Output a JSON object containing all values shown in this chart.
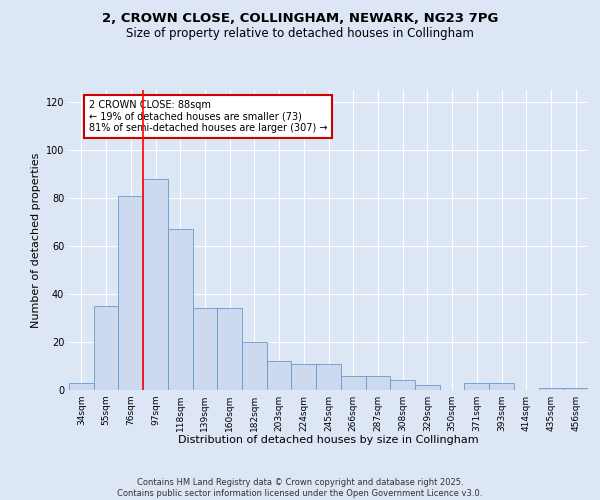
{
  "title_line1": "2, CROWN CLOSE, COLLINGHAM, NEWARK, NG23 7PG",
  "title_line2": "Size of property relative to detached houses in Collingham",
  "xlabel": "Distribution of detached houses by size in Collingham",
  "ylabel": "Number of detached properties",
  "categories": [
    "34sqm",
    "55sqm",
    "76sqm",
    "97sqm",
    "118sqm",
    "139sqm",
    "160sqm",
    "182sqm",
    "203sqm",
    "224sqm",
    "245sqm",
    "266sqm",
    "287sqm",
    "308sqm",
    "329sqm",
    "350sqm",
    "371sqm",
    "393sqm",
    "414sqm",
    "435sqm",
    "456sqm"
  ],
  "values": [
    3,
    35,
    81,
    88,
    67,
    34,
    34,
    20,
    12,
    11,
    11,
    6,
    6,
    4,
    2,
    0,
    3,
    3,
    0,
    1,
    1
  ],
  "bar_color": "#ccd9ee",
  "bar_edge_color": "#6699cc",
  "background_color": "#dce6f5",
  "grid_color": "#ffffff",
  "red_line_index": 2.5,
  "annotation_text": "2 CROWN CLOSE: 88sqm\n← 19% of detached houses are smaller (73)\n81% of semi-detached houses are larger (307) →",
  "annotation_box_color": "#ffffff",
  "annotation_box_edge_color": "#cc0000",
  "footer_text": "Contains HM Land Registry data © Crown copyright and database right 2025.\nContains public sector information licensed under the Open Government Licence v3.0.",
  "ylim": [
    0,
    125
  ],
  "yticks": [
    0,
    20,
    40,
    60,
    80,
    100,
    120
  ],
  "title_fontsize": 9.5,
  "subtitle_fontsize": 8.5,
  "axis_label_fontsize": 8,
  "tick_fontsize": 6.5,
  "annotation_fontsize": 7,
  "footer_fontsize": 6
}
